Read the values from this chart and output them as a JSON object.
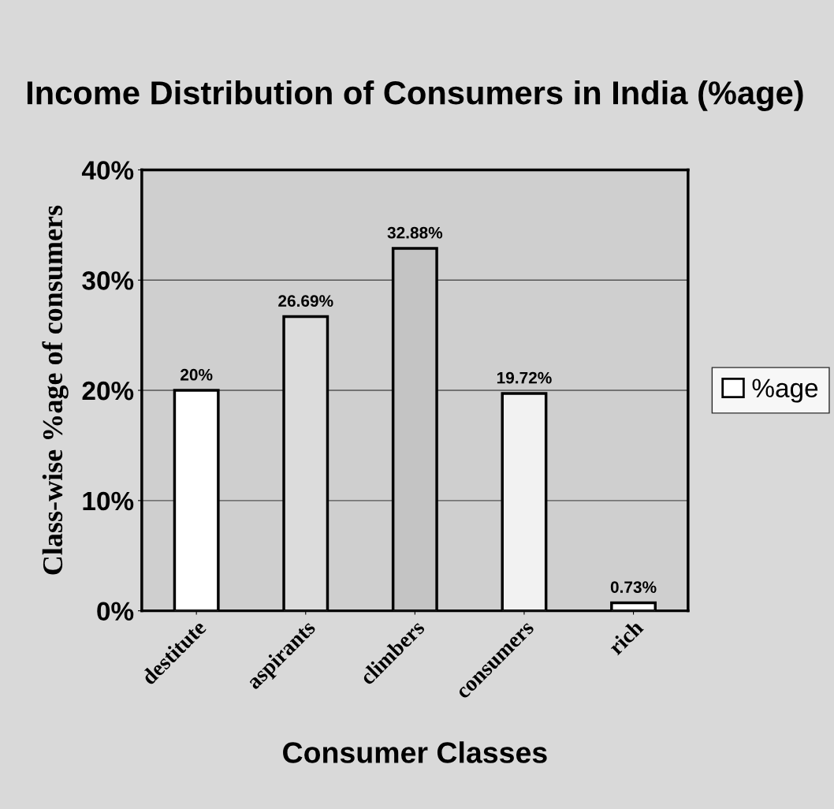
{
  "chart_data": {
    "type": "bar",
    "title": "Income Distribution of Consumers in India (%age)",
    "xlabel": "Consumer Classes",
    "ylabel": "Class-wise %age of consumers",
    "categories": [
      "destitute",
      "aspirants",
      "climbers",
      "consumers",
      "rich"
    ],
    "series": [
      {
        "name": "%age",
        "color": "#ffffff",
        "values": [
          20,
          26.69,
          32.88,
          19.72,
          0.73
        ],
        "colors": [
          "#ffffff",
          "#dcdcdc",
          "#c4c4c4",
          "#f2f2f2",
          "#ffffff"
        ],
        "value_labels": [
          "20%",
          "26.69%",
          "32.88%",
          "19.72%",
          "0.73%"
        ]
      }
    ],
    "ylim": [
      0,
      40
    ],
    "yticks": [
      {
        "value": 0,
        "label": "0%"
      },
      {
        "value": 10,
        "label": "10%"
      },
      {
        "value": 20,
        "label": "20%"
      },
      {
        "value": 30,
        "label": "30%"
      },
      {
        "value": 40,
        "label": "40%"
      }
    ],
    "grid": "y",
    "legend": "right"
  }
}
